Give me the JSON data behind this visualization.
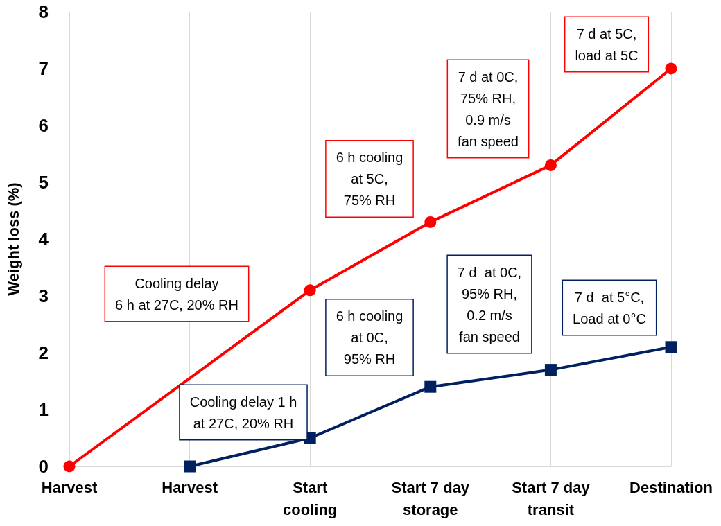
{
  "chart_data": {
    "type": "line",
    "ylabel": "Weight loss (%)",
    "categories": [
      "Harvest",
      "Harvest",
      "Start\ncooling",
      "Start 7 day\nstorage",
      "Start 7 day\ntransit",
      "Destination"
    ],
    "series": [
      {
        "color": "#ff0000",
        "marker": "circle",
        "values": [
          0,
          null,
          3.1,
          4.3,
          5.3,
          7.0
        ]
      },
      {
        "color": "#002060",
        "marker": "square",
        "values": [
          null,
          0,
          0.5,
          1.4,
          1.7,
          2.1
        ]
      }
    ],
    "ylim": [
      0,
      8
    ],
    "yticks": [
      0,
      1,
      2,
      3,
      4,
      5,
      6,
      7,
      8
    ],
    "grid": "x",
    "annotations": [
      "Cooling delay\n6 h at 27C, 20% RH",
      "6 h cooling\nat 5C,\n75% RH",
      "7 d at 0C,\n75% RH,\n0.9 m/s\nfan speed",
      "7 d at 5C,\nload at 5C",
      "Cooling delay 1 h\nat 27C, 20% RH",
      "6 h cooling\nat 0C,\n95% RH",
      "7 d  at 0C,\n95% RH,\n0.2 m/s\nfan speed",
      "7 d  at 5°C,\nLoad at 0°C"
    ]
  }
}
